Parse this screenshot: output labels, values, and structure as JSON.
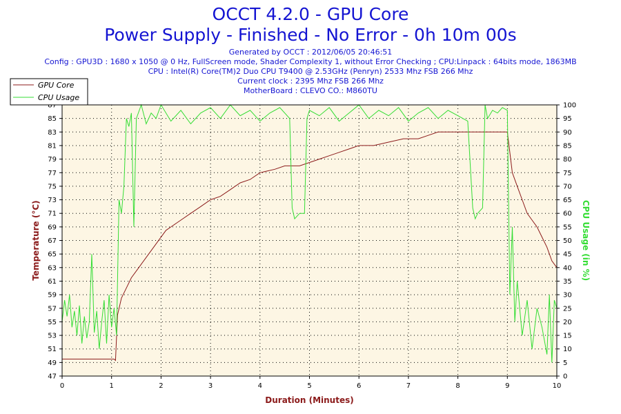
{
  "header": {
    "title_line1": "OCCT 4.2.0 - GPU Core",
    "title_line2": "Power Supply - Finished - No Error - 0h 10m 00s",
    "generated": "Generated by OCCT : 2012/06/05 20:46:51",
    "config": "Config : GPU3D : 1680 x 1050 @ 0 Hz, FullScreen mode, Shader Complexity 1, without Error Checking ; CPU:Linpack : 64bits mode, 1863MB",
    "cpu": "CPU : Intel(R) Core(TM)2 Duo CPU T9400 @ 2.53GHz (Penryn) 2533 Mhz FSB 266 Mhz",
    "clock": "Current clock : 2395 Mhz FSB 266 Mhz",
    "motherboard": "MotherBoard : CLEVO CO.: M860TU"
  },
  "colors": {
    "gpu": "#8b1a1a",
    "cpu": "#33dd33",
    "plot_bg": "#fdf6e4",
    "title": "#1414d2"
  },
  "chart_data": {
    "type": "line",
    "xlabel": "Duration (Minutes)",
    "ylabel_left": "Temperature (°C)",
    "ylabel_right": "CPU Usage (in %)",
    "xlim": [
      0,
      10
    ],
    "ylim_left": [
      47,
      87
    ],
    "ylim_right": [
      0,
      100
    ],
    "x_ticks": [
      0,
      1,
      2,
      3,
      4,
      5,
      6,
      7,
      8,
      9,
      10
    ],
    "y_ticks_left": [
      47,
      49,
      51,
      53,
      55,
      57,
      59,
      61,
      63,
      65,
      67,
      69,
      71,
      73,
      75,
      77,
      79,
      81,
      83,
      85,
      87
    ],
    "y_ticks_right": [
      0,
      5,
      10,
      15,
      20,
      25,
      30,
      35,
      40,
      45,
      50,
      55,
      60,
      65,
      70,
      75,
      80,
      85,
      90,
      95,
      100
    ],
    "grid": true,
    "legend_position": "top-left",
    "series": [
      {
        "name": "GPU Core",
        "axis": "left",
        "x": [
          0,
          1.05,
          1.08,
          1.12,
          1.2,
          1.3,
          1.4,
          1.5,
          1.6,
          1.7,
          1.8,
          1.9,
          2.0,
          2.1,
          2.2,
          2.4,
          2.6,
          2.8,
          3.0,
          3.2,
          3.4,
          3.6,
          3.8,
          4.0,
          4.3,
          4.5,
          4.8,
          5.0,
          5.2,
          5.4,
          5.6,
          5.8,
          6.0,
          6.3,
          6.6,
          6.9,
          7.2,
          7.4,
          7.6,
          7.8,
          8.0,
          8.2,
          8.5,
          8.8,
          9.0,
          9.05,
          9.1,
          9.2,
          9.3,
          9.4,
          9.5,
          9.6,
          9.7,
          9.8,
          9.9,
          10.0
        ],
        "values": [
          49.5,
          49.5,
          49.3,
          56,
          58.5,
          60,
          61.5,
          62.5,
          63.5,
          64.5,
          65.5,
          66.5,
          67.5,
          68.5,
          69,
          70,
          71,
          72,
          73,
          73.5,
          74.5,
          75.5,
          76,
          77,
          77.5,
          78,
          78,
          78.5,
          79,
          79.5,
          80,
          80.5,
          81,
          81,
          81.5,
          82,
          82,
          82.5,
          83,
          83,
          83,
          83,
          83,
          83,
          83,
          80,
          77,
          75,
          73,
          71,
          70,
          69,
          67.5,
          66,
          64,
          63
        ]
      },
      {
        "name": "CPU Usage",
        "axis": "right",
        "x": [
          0,
          0.05,
          0.1,
          0.15,
          0.2,
          0.25,
          0.3,
          0.35,
          0.4,
          0.45,
          0.5,
          0.55,
          0.6,
          0.65,
          0.7,
          0.75,
          0.8,
          0.85,
          0.9,
          0.95,
          1.0,
          1.05,
          1.1,
          1.15,
          1.2,
          1.25,
          1.3,
          1.35,
          1.4,
          1.45,
          1.5,
          1.6,
          1.7,
          1.8,
          1.9,
          2.0,
          2.2,
          2.4,
          2.6,
          2.8,
          3.0,
          3.2,
          3.4,
          3.6,
          3.8,
          4.0,
          4.2,
          4.4,
          4.6,
          4.65,
          4.7,
          4.8,
          4.9,
          4.95,
          5.0,
          5.2,
          5.4,
          5.6,
          5.8,
          6.0,
          6.2,
          6.4,
          6.6,
          6.8,
          7.0,
          7.2,
          7.4,
          7.6,
          7.8,
          8.0,
          8.2,
          8.3,
          8.35,
          8.4,
          8.5,
          8.55,
          8.6,
          8.7,
          8.8,
          8.9,
          9.0,
          9.05,
          9.1,
          9.15,
          9.2,
          9.3,
          9.4,
          9.5,
          9.6,
          9.7,
          9.8,
          9.85,
          9.9,
          9.95,
          10.0
        ],
        "values": [
          20,
          28,
          22,
          30,
          18,
          24,
          15,
          26,
          12,
          22,
          14,
          20,
          45,
          16,
          24,
          10,
          20,
          28,
          12,
          30,
          18,
          25,
          15,
          65,
          60,
          70,
          95,
          92,
          97,
          55,
          95,
          100,
          93,
          97,
          95,
          100,
          94,
          98,
          93,
          97,
          99,
          95,
          100,
          96,
          98,
          94,
          97,
          99,
          95,
          62,
          58,
          60,
          60,
          95,
          98,
          96,
          99,
          94,
          97,
          100,
          95,
          98,
          96,
          99,
          94,
          97,
          99,
          95,
          98,
          96,
          94,
          62,
          58,
          60,
          62,
          100,
          95,
          98,
          97,
          99,
          98,
          30,
          55,
          20,
          35,
          15,
          28,
          10,
          25,
          18,
          8,
          30,
          5,
          28,
          25
        ]
      }
    ]
  }
}
